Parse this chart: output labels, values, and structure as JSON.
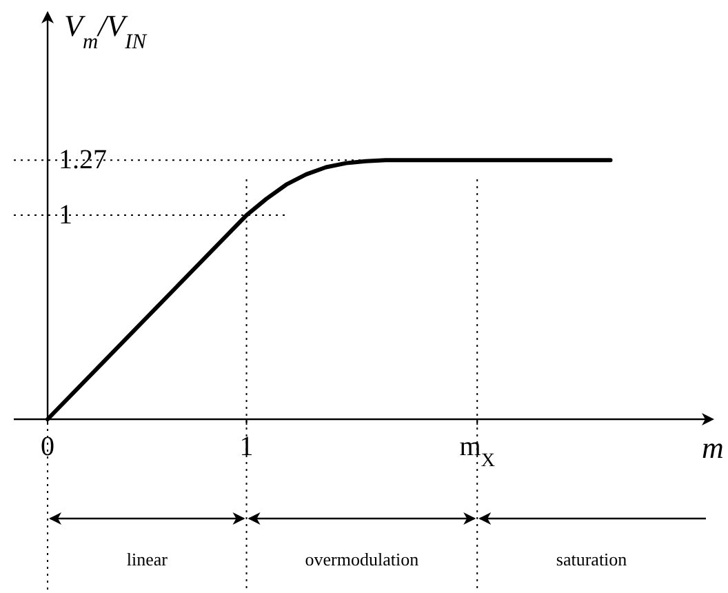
{
  "chart_data": {
    "type": "line",
    "xlabel": "m",
    "ylabel": "V$_{m}$/V$_{IN}$",
    "series": [
      {
        "color": "#000000",
        "x": [
          0,
          1,
          1.1,
          1.2,
          1.3,
          1.4,
          1.5,
          1.6,
          1.7,
          1.85,
          2.16,
          2.83
        ],
        "values": [
          0,
          1,
          1.08,
          1.15,
          1.2,
          1.235,
          1.255,
          1.265,
          1.27,
          1.27,
          1.27,
          1.27
        ]
      }
    ],
    "xlim": [
      -0.17,
      3.31
    ],
    "ylim": [
      0,
      1.96
    ],
    "xticks": [
      0,
      1,
      {
        "value": 2.16,
        "label": "m$_{X}$"
      }
    ],
    "yticks": [
      1,
      1.27
    ],
    "ref_lines": [
      {
        "axis": "y",
        "value": 1,
        "line_style": "dotted"
      },
      {
        "axis": "y",
        "value": 1.27,
        "line_style": "dotted"
      },
      {
        "axis": "x",
        "value": 1,
        "line_style": "dotted"
      },
      {
        "axis": "x",
        "value": 2.16,
        "line_style": "dotted"
      }
    ],
    "annotations": [
      "linear",
      "overmodulation",
      "saturation"
    ],
    "grid": false,
    "marker": "none",
    "line_style": "solid"
  }
}
